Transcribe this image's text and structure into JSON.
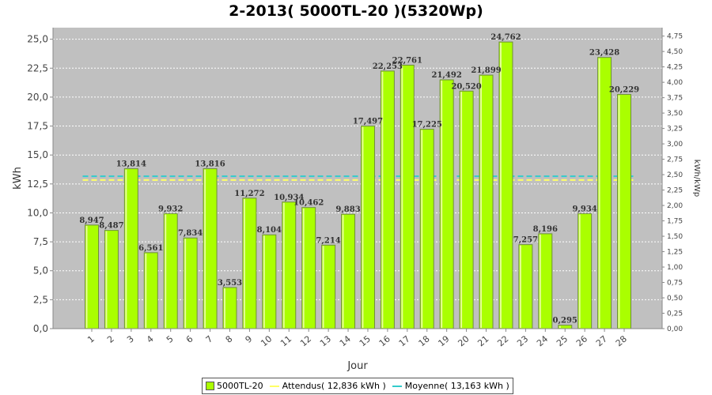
{
  "chart_data": {
    "type": "bar",
    "title": "2-2013( 5000TL-20 )(5320Wp)",
    "xlabel": "Jour",
    "ylabel": "kWh",
    "y2label": "kWh/kWp",
    "categories": [
      "1",
      "2",
      "3",
      "4",
      "5",
      "6",
      "7",
      "8",
      "9",
      "10",
      "11",
      "12",
      "13",
      "14",
      "15",
      "16",
      "17",
      "18",
      "19",
      "20",
      "21",
      "22",
      "23",
      "24",
      "25",
      "26",
      "27",
      "28"
    ],
    "series": [
      {
        "name": "5000TL-20",
        "values": [
          8.947,
          8.487,
          13.814,
          6.561,
          9.932,
          7.834,
          13.816,
          3.553,
          11.272,
          8.104,
          10.934,
          10.462,
          7.214,
          9.883,
          17.497,
          22.253,
          22.761,
          17.225,
          21.492,
          20.52,
          21.899,
          24.762,
          7.257,
          8.196,
          0.295,
          9.934,
          23.428,
          20.229
        ],
        "labels": [
          "8,947",
          "8,487",
          "13,814",
          "6,561",
          "9,932",
          "7,834",
          "13,816",
          "3,553",
          "11,272",
          "8,104",
          "10,934",
          "10,462",
          "7,214",
          "9,883",
          "17,497",
          "22,253",
          "22,761",
          "17,225",
          "21,492",
          "20,520",
          "21,899",
          "24,762",
          "7,257",
          "8,196",
          "0,295",
          "9,934",
          "23,428",
          "20,229"
        ],
        "color": "#aaff00"
      }
    ],
    "reference_lines": [
      {
        "name": "Attendus",
        "value": 12.836,
        "legend": "Attendus( 12,836 kWh )",
        "color": "#ffff66"
      },
      {
        "name": "Moyenne",
        "value": 13.163,
        "legend": "Moyenne( 13,163 kWh )",
        "color": "#33cccc"
      }
    ],
    "legend_labels": [
      "5000TL-20",
      "Attendus( 12,836 kWh )",
      "Moyenne( 13,163 kWh )"
    ],
    "ylim": [
      0,
      26
    ],
    "y_ticks": [
      "0,0",
      "2,5",
      "5,0",
      "7,5",
      "10,0",
      "12,5",
      "15,0",
      "17,5",
      "20,0",
      "22,5",
      "25,0"
    ],
    "y2lim": [
      0,
      4.887
    ],
    "y2_ticks": [
      "0,00",
      "0,25",
      "0,50",
      "0,75",
      "1,00",
      "1,25",
      "1,50",
      "1,75",
      "2,00",
      "2,25",
      "2,50",
      "2,75",
      "3,00",
      "3,25",
      "3,50",
      "3,75",
      "4,00",
      "4,25",
      "4,50",
      "4,75"
    ],
    "grid": true,
    "legend_position": "bottom",
    "plot_background": "#c0c0c0"
  }
}
